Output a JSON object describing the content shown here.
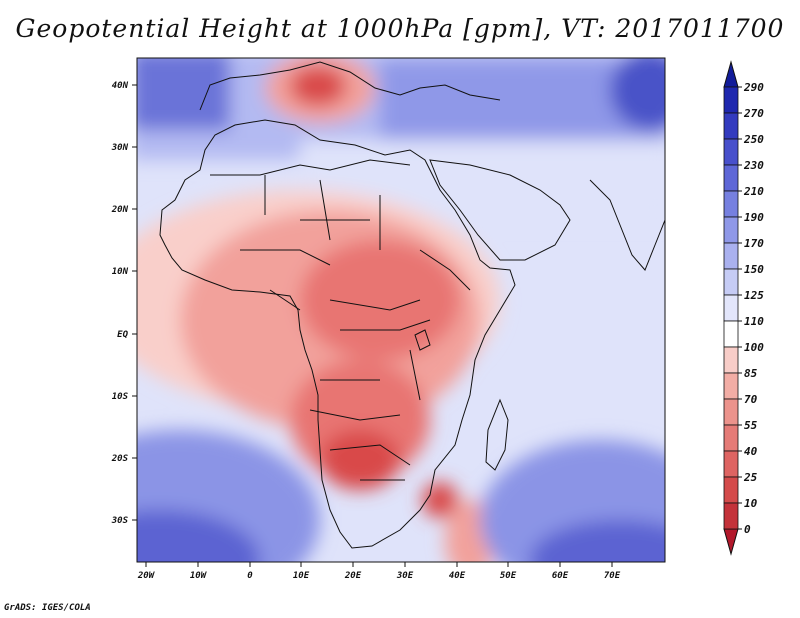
{
  "title": "Geopotential Height at 1000hPa [gpm], VT: 2017011700",
  "credit": "GrADS: IGES/COLA",
  "lon_ticks": [
    "20W",
    "10W",
    "0",
    "10E",
    "20E",
    "30E",
    "40E",
    "50E",
    "60E",
    "70E"
  ],
  "lat_ticks": [
    "40N",
    "30N",
    "20N",
    "10N",
    "EQ",
    "10S",
    "20S",
    "30S"
  ],
  "colorbar": {
    "labels": [
      "0",
      "10",
      "25",
      "40",
      "55",
      "70",
      "85",
      "100",
      "110",
      "125",
      "150",
      "170",
      "190",
      "210",
      "230",
      "250",
      "270",
      "290"
    ],
    "colors": [
      "#b2182b",
      "#c4323a",
      "#d44b4b",
      "#de6462",
      "#e57b77",
      "#ec938c",
      "#f2ada5",
      "#f8cdc8",
      "#ffffff",
      "#e3e6fb",
      "#c6ccf5",
      "#aab1ef",
      "#8f98e8",
      "#7680e0",
      "#5e67d7",
      "#4850cc",
      "#333bbf",
      "#1f28af",
      "#121c9a"
    ]
  },
  "map": {
    "lon_range": [
      -22,
      79
    ],
    "lat_range": [
      -37,
      45
    ],
    "field_colors": {
      "deep_red": "#d94a4a",
      "red": "#e87572",
      "mid_red": "#f2a19b",
      "light_red": "#f9cfca",
      "white": "#ffffff",
      "light_blue": "#dfe3fa",
      "blue": "#b3baf2",
      "mid_blue": "#8b94e6",
      "deep_blue": "#5b63d2"
    }
  }
}
